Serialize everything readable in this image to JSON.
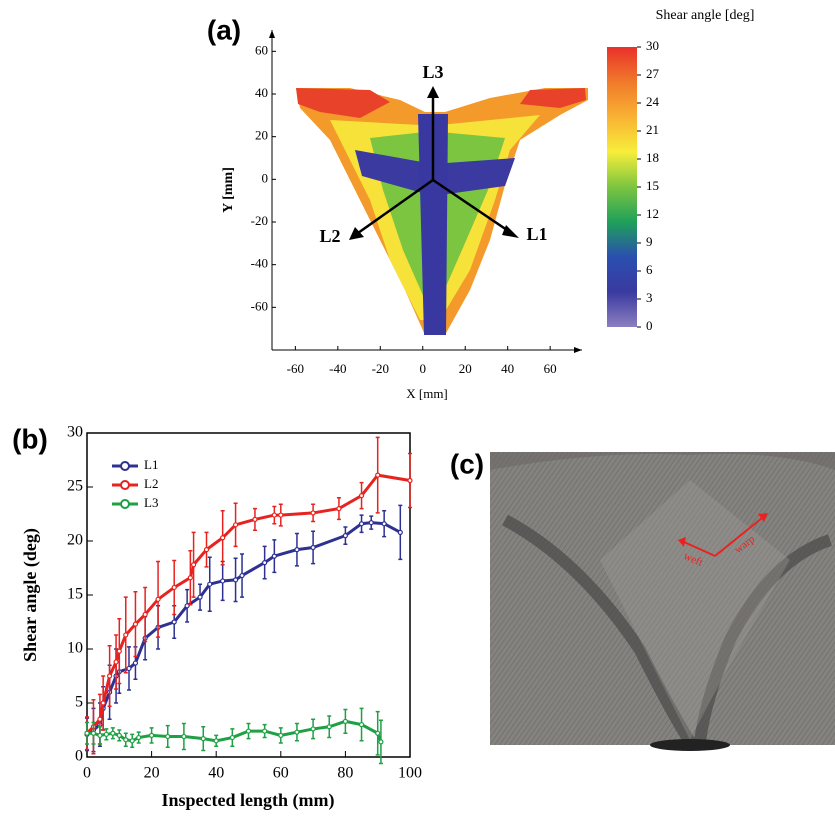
{
  "chart_data": [
    {
      "type": "heatmap",
      "panel_label": "(a)",
      "xlabel": "X [mm]",
      "ylabel": "Y [mm]",
      "xlim": [
        -71,
        75
      ],
      "xticks": [
        -60,
        -40,
        -20,
        0,
        20,
        40,
        60
      ],
      "ylim": [
        -80,
        70
      ],
      "yticks": [
        -60,
        -40,
        -20,
        0,
        20,
        40,
        60
      ],
      "colorbar": {
        "title": "Shear angle [deg]",
        "lim": [
          0,
          30
        ],
        "ticks": [
          0,
          3,
          6,
          9,
          12,
          15,
          18,
          21,
          24,
          27,
          30
        ],
        "colors": [
          "#8c7fc0",
          "#3a3aa0",
          "#2a4fb0",
          "#1fa05a",
          "#7cc540",
          "#f7ee3a",
          "#f9b233",
          "#f07a2a",
          "#e8312a"
        ]
      },
      "annotations": [
        "L1",
        "L2",
        "L3"
      ]
    },
    {
      "type": "line",
      "panel_label": "(b)",
      "xlabel": "Inspected length (mm)",
      "ylabel": "Shear angle (deg)",
      "xlim": [
        0,
        100
      ],
      "xticks": [
        0,
        20,
        40,
        60,
        80,
        100
      ],
      "ylim": [
        0,
        30
      ],
      "yticks": [
        0,
        5,
        10,
        15,
        20,
        25,
        30
      ],
      "legend": "upper left",
      "series": [
        {
          "name": "L1",
          "color": "#2e3192",
          "x": [
            0,
            2,
            4,
            5,
            7,
            9,
            10,
            13,
            15,
            18,
            22,
            27,
            31,
            35,
            38,
            42,
            46,
            48,
            55,
            58,
            65,
            70,
            80,
            85,
            88,
            92,
            97
          ],
          "values": [
            2.1,
            2.5,
            3,
            4.5,
            6,
            7.5,
            7.9,
            8.2,
            8.7,
            11,
            12,
            12.5,
            14,
            14.8,
            16,
            16.3,
            16.4,
            16.8,
            18,
            18.6,
            19.2,
            19.4,
            20.5,
            21.6,
            21.7,
            21.6,
            20.8
          ],
          "errors": [
            1.5,
            2,
            2,
            2,
            2.5,
            2.5,
            2,
            2,
            1.5,
            2,
            2,
            1.5,
            1.5,
            1.2,
            2.5,
            1.8,
            2,
            2,
            1.5,
            1.5,
            1.5,
            1.5,
            0.8,
            0.8,
            0.6,
            1.2,
            2.5
          ]
        },
        {
          "name": "L2",
          "color": "#e8231f",
          "x": [
            0,
            2,
            4,
            5,
            7,
            9,
            10,
            12,
            15,
            18,
            22,
            27,
            32,
            33,
            37,
            42,
            46,
            52,
            58,
            60,
            70,
            78,
            85,
            90,
            100
          ],
          "values": [
            2.2,
            2.8,
            3.5,
            5,
            7.5,
            8.8,
            9.8,
            11.3,
            12.3,
            13.2,
            14.6,
            15.7,
            16.6,
            17.8,
            19.2,
            20.3,
            21.5,
            22,
            22.4,
            22.4,
            22.6,
            23,
            24.2,
            26.1,
            25.6
          ],
          "errors": [
            1.5,
            2.5,
            2.3,
            2.5,
            2.8,
            2.5,
            3,
            3.5,
            3,
            2.5,
            3.5,
            2.5,
            2.5,
            3,
            1.6,
            2.5,
            2,
            1,
            0.8,
            1,
            0.8,
            1,
            1.2,
            3.5,
            2.5
          ]
        },
        {
          "name": "L3",
          "color": "#1fa045",
          "x": [
            0,
            2,
            4,
            6,
            8,
            10,
            12,
            14,
            16,
            20,
            25,
            30,
            36,
            40,
            45,
            50,
            55,
            60,
            65,
            70,
            75,
            80,
            85,
            90,
            91
          ],
          "values": [
            2.2,
            2.2,
            2,
            2.1,
            2.2,
            2,
            1.6,
            1.5,
            1.8,
            2,
            1.9,
            1.9,
            1.7,
            1.5,
            1.8,
            2.4,
            2.4,
            2,
            2.3,
            2.6,
            2.8,
            3.3,
            3,
            2.2,
            1.4
          ],
          "errors": [
            1,
            1,
            0.8,
            0.5,
            0.5,
            0.5,
            0.6,
            0.6,
            0.5,
            0.7,
            1,
            1.2,
            1.1,
            0.5,
            0.8,
            0.7,
            0.6,
            0.7,
            0.8,
            0.9,
            1,
            1.1,
            1.5,
            2,
            2
          ]
        }
      ]
    }
  ],
  "photo": {
    "panel_label": "(c)",
    "annotations": [
      "weft",
      "warp"
    ]
  }
}
